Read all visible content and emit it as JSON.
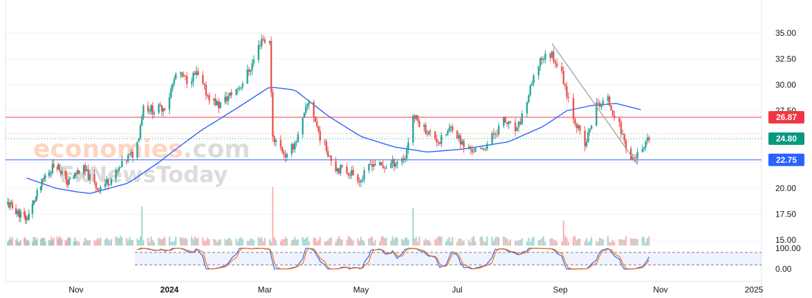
{
  "watermark": {
    "line1_a": "economies",
    "line1_b": ".com",
    "line2": "FxNewsToday"
  },
  "colors": {
    "up": "#26a69a",
    "down": "#ef5350",
    "ma": "#2962ff",
    "resistance": "#f23645",
    "support": "#2962ff",
    "current": "#089981",
    "trendline": "#9e9e9e",
    "stoch_k": "#2962ff",
    "stoch_d": "#ff6d00"
  },
  "chart_data": {
    "type": "candlestick",
    "x_ticks": [
      "Nov",
      "2024",
      "Mar",
      "May",
      "Jul",
      "Sep",
      "Nov",
      "2025"
    ],
    "y_ticks": [
      "35.00",
      "32.50",
      "30.00",
      "27.50",
      "25.00",
      "22.50",
      "20.00",
      "17.50",
      "15.00"
    ],
    "ylim": [
      15.0,
      35.8
    ],
    "price_levels": [
      {
        "label": "26.87",
        "value": 26.87,
        "role": "resistance"
      },
      {
        "label": "24.80",
        "value": 24.8,
        "role": "current"
      },
      {
        "label": "22.75",
        "value": 22.75,
        "role": "support"
      }
    ],
    "trendline": {
      "from": [
        "2024-08-27",
        34.0
      ],
      "to": [
        "2024-10-18",
        22.3
      ]
    },
    "stochastic": {
      "y_ticks": [
        "100.00",
        "0.00"
      ],
      "upper_band": 80,
      "lower_band": 20
    },
    "ohlc_anchors": [
      [
        "2023-09-04",
        18.5
      ],
      [
        "2023-09-20",
        17.0
      ],
      [
        "2023-10-05",
        21.0
      ],
      [
        "2023-10-15",
        22.5
      ],
      [
        "2023-10-25",
        20.5
      ],
      [
        "2023-11-05",
        22.0
      ],
      [
        "2023-11-15",
        20.0
      ],
      [
        "2023-11-25",
        21.0
      ],
      [
        "2023-12-05",
        23.0
      ],
      [
        "2023-12-10",
        23.5
      ],
      [
        "2023-12-15",
        28.0
      ],
      [
        "2023-12-22",
        27.5
      ],
      [
        "2023-12-30",
        28.0
      ],
      [
        "2024-01-05",
        31.0
      ],
      [
        "2024-01-12",
        30.5
      ],
      [
        "2024-01-18",
        31.0
      ],
      [
        "2024-01-25",
        29.0
      ],
      [
        "2024-02-01",
        28.0
      ],
      [
        "2024-02-08",
        29.0
      ],
      [
        "2024-02-15",
        30.0
      ],
      [
        "2024-02-22",
        32.0
      ],
      [
        "2024-02-28",
        34.5
      ],
      [
        "2024-03-04",
        34.0
      ],
      [
        "2024-03-06",
        25.0
      ],
      [
        "2024-03-15",
        23.0
      ],
      [
        "2024-03-22",
        25.0
      ],
      [
        "2024-03-29",
        28.5
      ],
      [
        "2024-04-05",
        25.0
      ],
      [
        "2024-04-15",
        22.0
      ],
      [
        "2024-04-25",
        21.5
      ],
      [
        "2024-05-01",
        20.8
      ],
      [
        "2024-05-08",
        22.5
      ],
      [
        "2024-05-15",
        22.0
      ],
      [
        "2024-05-22",
        22.5
      ],
      [
        "2024-05-29",
        23.0
      ],
      [
        "2024-06-03",
        27.0
      ],
      [
        "2024-06-12",
        25.5
      ],
      [
        "2024-06-20",
        24.5
      ],
      [
        "2024-06-28",
        26.0
      ],
      [
        "2024-07-05",
        24.0
      ],
      [
        "2024-07-15",
        23.5
      ],
      [
        "2024-07-22",
        25.0
      ],
      [
        "2024-07-29",
        26.5
      ],
      [
        "2024-08-06",
        25.5
      ],
      [
        "2024-08-13",
        29.0
      ],
      [
        "2024-08-20",
        32.5
      ],
      [
        "2024-08-27",
        33.0
      ],
      [
        "2024-09-02",
        31.0
      ],
      [
        "2024-09-09",
        27.0
      ],
      [
        "2024-09-16",
        24.0
      ],
      [
        "2024-09-23",
        28.0
      ],
      [
        "2024-09-30",
        28.5
      ],
      [
        "2024-10-07",
        26.0
      ],
      [
        "2024-10-14",
        22.8
      ],
      [
        "2024-10-21",
        23.5
      ],
      [
        "2024-10-25",
        24.8
      ]
    ],
    "ma_anchors": [
      [
        "2023-09-20",
        21.0
      ],
      [
        "2023-10-15",
        20.0
      ],
      [
        "2023-11-10",
        19.5
      ],
      [
        "2023-12-05",
        20.5
      ],
      [
        "2023-12-25",
        22.5
      ],
      [
        "2024-01-20",
        25.5
      ],
      [
        "2024-02-15",
        28.0
      ],
      [
        "2024-03-04",
        29.8
      ],
      [
        "2024-03-20",
        29.5
      ],
      [
        "2024-04-10",
        27.0
      ],
      [
        "2024-05-01",
        25.0
      ],
      [
        "2024-05-22",
        24.0
      ],
      [
        "2024-06-12",
        23.5
      ],
      [
        "2024-07-05",
        23.8
      ],
      [
        "2024-08-01",
        24.5
      ],
      [
        "2024-08-22",
        26.0
      ],
      [
        "2024-09-05",
        27.5
      ],
      [
        "2024-09-20",
        28.0
      ],
      [
        "2024-10-05",
        28.2
      ],
      [
        "2024-10-20",
        27.6
      ]
    ]
  }
}
